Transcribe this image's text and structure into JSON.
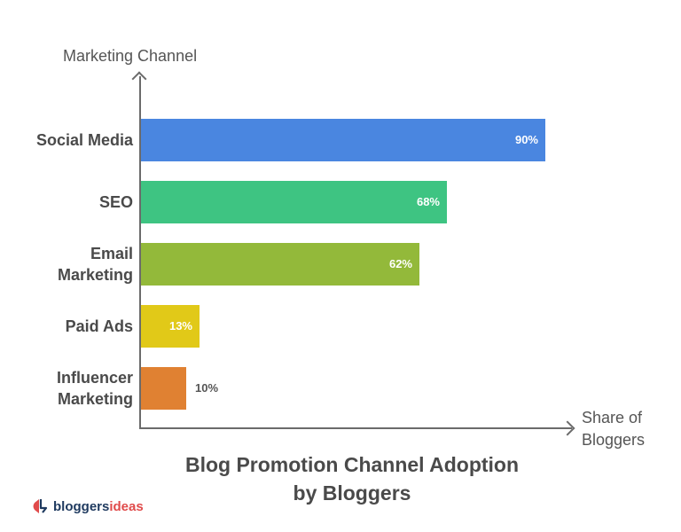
{
  "chart_data": {
    "type": "bar",
    "orientation": "horizontal",
    "title": "Blog Promotion Channel Adoption by Bloggers",
    "xlabel": "Share of Bloggers",
    "ylabel": "Marketing Channel",
    "categories": [
      "Social Media",
      "SEO",
      "Email Marketing",
      "Paid Ads",
      "Influencer Marketing"
    ],
    "values": [
      90,
      68,
      62,
      13,
      10
    ],
    "value_labels": [
      "90%",
      "68%",
      "62%",
      "13%",
      "10%"
    ],
    "colors": [
      "#4a86e0",
      "#3ec482",
      "#93b93a",
      "#e1c918",
      "#e08132"
    ],
    "unit": "%",
    "xlim": [
      0,
      100
    ],
    "grid": false,
    "legend": null
  },
  "labels": {
    "y_title": "Marketing Channel",
    "x_title": "Share of\nBloggers",
    "title": "Blog Promotion Channel Adoption\nby Bloggers",
    "cat0": "Social Media",
    "cat1": "SEO",
    "cat2": "Email\nMarketing",
    "cat3": "Paid Ads",
    "cat4": "Influencer\nMarketing"
  },
  "logo": {
    "part1": "bloggers",
    "part2": "ideas",
    "colors": {
      "part1": "#1f3a5f",
      "part2": "#e04b4b"
    }
  }
}
